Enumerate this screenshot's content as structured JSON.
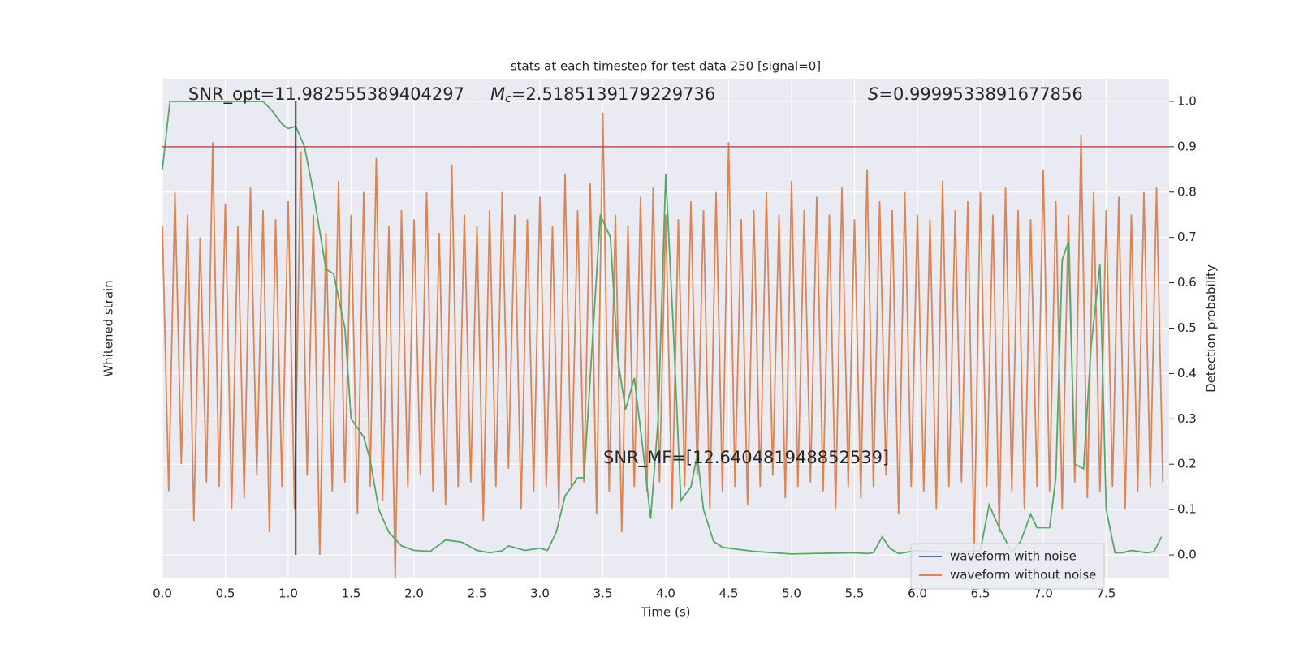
{
  "chart_data": {
    "type": "line",
    "title": "stats at each timestep for test data 250 [signal=0]",
    "xlabel": "Time (s)",
    "ylabel": "Whitened strain",
    "y2label": "Detection probability",
    "annotations": [
      "SNR_opt=11.982555389404297",
      "SNR_MF=[12.640481948852539]"
    ],
    "mc_label": {
      "symbol": "M",
      "subscript": "c",
      "value": "=2.5185139179229736"
    },
    "s_label": {
      "symbol": "S",
      "value": "=0.9999533891677856"
    },
    "xlim": [
      0,
      8
    ],
    "xticks": [
      {
        "value": 0,
        "label": "0.0"
      },
      0.5,
      {
        "value": 1,
        "label": "1.0"
      },
      1.5,
      {
        "value": 2,
        "label": "2.0"
      },
      2.5,
      {
        "value": 3,
        "label": "3.0"
      },
      3.5,
      {
        "value": 4,
        "label": "4.0"
      },
      4.5,
      {
        "value": 5,
        "label": "5.0"
      },
      5.5,
      {
        "value": 6,
        "label": "6.0"
      },
      6.5,
      {
        "value": 7,
        "label": "7.0"
      },
      7.5
    ],
    "ylim": [
      -1,
      1.2
    ],
    "y2lim": [
      -0.05,
      1.05
    ],
    "y2ticks": [
      {
        "value": 0,
        "label": "0.0"
      },
      0.1,
      0.2,
      0.3,
      0.4,
      0.5,
      0.6,
      0.7,
      0.8,
      0.9,
      {
        "value": 1,
        "label": "1.0"
      }
    ],
    "grid": true,
    "legend": "lower right",
    "hlines": [
      {
        "y": 0.9,
        "color": "#c44e52",
        "axis": "y2"
      }
    ],
    "vlines": [
      {
        "x": 1.06,
        "color": "#000000"
      }
    ],
    "series": [
      {
        "name": "waveform with noise",
        "color": "#4c72b0",
        "x": [],
        "values": []
      },
      {
        "name": "waveform without noise",
        "color": "#dd8452",
        "x": [
          0,
          0.05,
          0.1,
          0.15,
          0.2,
          0.25,
          0.3,
          0.35,
          0.4,
          0.45,
          0.5,
          0.55,
          0.6,
          0.65,
          0.7,
          0.75,
          0.8,
          0.85,
          0.9,
          0.95,
          1,
          1.05,
          1.1,
          1.15,
          1.2,
          1.25,
          1.3,
          1.35,
          1.4,
          1.45,
          1.5,
          1.55,
          1.6,
          1.65,
          1.7,
          1.75,
          1.8,
          1.85,
          1.9,
          1.95,
          2,
          2.05,
          2.1,
          2.15,
          2.2,
          2.25,
          2.3,
          2.35,
          2.4,
          2.45,
          2.5,
          2.55,
          2.6,
          2.65,
          2.7,
          2.75,
          2.8,
          2.85,
          2.9,
          2.95,
          3,
          3.05,
          3.1,
          3.15,
          3.2,
          3.25,
          3.3,
          3.35,
          3.4,
          3.45,
          3.5,
          3.55,
          3.6,
          3.65,
          3.7,
          3.75,
          3.8,
          3.85,
          3.9,
          3.95,
          4,
          4.05,
          4.1,
          4.15,
          4.2,
          4.25,
          4.3,
          4.35,
          4.4,
          4.45,
          4.5,
          4.55,
          4.6,
          4.65,
          4.7,
          4.75,
          4.8,
          4.85,
          4.9,
          4.95,
          5,
          5.05,
          5.1,
          5.15,
          5.2,
          5.25,
          5.3,
          5.35,
          5.4,
          5.45,
          5.5,
          5.55,
          5.6,
          5.65,
          5.7,
          5.75,
          5.8,
          5.85,
          5.9,
          5.95,
          6,
          6.05,
          6.1,
          6.15,
          6.2,
          6.25,
          6.3,
          6.35,
          6.4,
          6.45,
          6.5,
          6.55,
          6.6,
          6.65,
          6.7,
          6.75,
          6.8,
          6.85,
          6.9,
          6.95,
          7,
          7.05,
          7.1,
          7.15,
          7.2,
          7.25,
          7.3,
          7.35,
          7.4,
          7.45,
          7.5,
          7.55,
          7.6,
          7.65,
          7.7,
          7.75,
          7.8,
          7.85,
          7.9,
          7.95
        ],
        "values": [
          0.55,
          -0.62,
          0.7,
          -0.5,
          0.6,
          -0.75,
          0.5,
          -0.58,
          0.92,
          -0.6,
          0.65,
          -0.7,
          0.55,
          -0.65,
          0.72,
          -0.55,
          0.62,
          -0.8,
          0.58,
          -0.6,
          0.66,
          -0.7,
          0.88,
          -0.55,
          0.6,
          -0.9,
          0.52,
          -0.62,
          0.75,
          -0.58,
          0.6,
          -0.72,
          0.7,
          -0.6,
          0.85,
          -0.66,
          0.55,
          -1.0,
          0.62,
          -0.6,
          0.58,
          -0.55,
          0.7,
          -0.62,
          0.52,
          -0.68,
          0.82,
          -0.6,
          0.6,
          -0.58,
          0.55,
          -0.75,
          0.62,
          -0.6,
          0.7,
          -0.52,
          0.6,
          -0.7,
          0.58,
          -0.62,
          0.68,
          -0.6,
          0.55,
          -0.7,
          0.78,
          -0.6,
          0.62,
          -0.58,
          0.74,
          -0.72,
          1.05,
          -0.62,
          0.6,
          -0.8,
          0.55,
          -0.6,
          0.68,
          -0.62,
          0.72,
          -0.58,
          0.6,
          -0.7,
          0.58,
          -0.6,
          0.66,
          -0.55,
          0.62,
          -0.7,
          0.7,
          -0.62,
          0.92,
          -0.6,
          0.58,
          -0.68,
          0.62,
          -0.6,
          0.7,
          -0.55,
          0.6,
          -0.65,
          0.75,
          -0.6,
          0.62,
          -0.58,
          0.68,
          -0.62,
          0.6,
          -0.7,
          0.72,
          -0.6,
          0.58,
          -0.65,
          0.8,
          -0.6,
          0.66,
          -0.55,
          0.62,
          -0.72,
          0.7,
          -0.6,
          0.6,
          -0.62,
          0.58,
          -0.7,
          0.75,
          -0.6,
          0.62,
          -0.58,
          0.66,
          -0.88,
          0.7,
          -0.6,
          0.6,
          -0.8,
          0.72,
          -0.62,
          0.62,
          -0.7,
          0.58,
          -0.6,
          0.8,
          -0.62,
          0.66,
          -0.7,
          0.6,
          -0.58,
          0.95,
          -0.65,
          0.7,
          -0.62,
          0.62,
          -0.6,
          0.68,
          -0.7,
          0.6,
          -0.62,
          0.7,
          -0.6,
          0.72,
          -0.58
        ]
      },
      {
        "color": "#55a868",
        "axis": "y2",
        "x": [
          0,
          0.06,
          0.8,
          0.87,
          0.95,
          1.0,
          1.06,
          1.13,
          1.2,
          1.3,
          1.36,
          1.45,
          1.5,
          1.6,
          1.65,
          1.72,
          1.8,
          1.9,
          2.0,
          2.13,
          2.25,
          2.38,
          2.5,
          2.6,
          2.7,
          2.75,
          2.88,
          3.0,
          3.06,
          3.13,
          3.2,
          3.3,
          3.35,
          3.48,
          3.56,
          3.62,
          3.68,
          3.75,
          3.82,
          3.88,
          3.94,
          4.0,
          4.06,
          4.12,
          4.2,
          4.25,
          4.3,
          4.38,
          4.45,
          4.5,
          4.7,
          5.0,
          5.5,
          5.6,
          5.65,
          5.72,
          5.78,
          5.85,
          6.0,
          6.3,
          6.5,
          6.57,
          6.65,
          6.75,
          6.82,
          6.9,
          6.95,
          7.05,
          7.1,
          7.15,
          7.2,
          7.25,
          7.32,
          7.38,
          7.45,
          7.5,
          7.57,
          7.63,
          7.7,
          7.82,
          7.88,
          7.94
        ],
        "values": [
          0.85,
          1.0,
          1.0,
          0.98,
          0.95,
          0.94,
          0.945,
          0.9,
          0.8,
          0.63,
          0.62,
          0.5,
          0.3,
          0.26,
          0.21,
          0.1,
          0.05,
          0.02,
          0.01,
          0.008,
          0.033,
          0.028,
          0.01,
          0.005,
          0.009,
          0.02,
          0.01,
          0.015,
          0.01,
          0.05,
          0.13,
          0.17,
          0.17,
          0.75,
          0.7,
          0.43,
          0.32,
          0.39,
          0.23,
          0.08,
          0.3,
          0.84,
          0.5,
          0.12,
          0.15,
          0.22,
          0.1,
          0.03,
          0.017,
          0.015,
          0.008,
          0.002,
          0.005,
          0.003,
          0.005,
          0.04,
          0.015,
          0.003,
          0.01,
          0.005,
          0.01,
          0.11,
          0.06,
          0.005,
          0.03,
          0.09,
          0.06,
          0.06,
          0.17,
          0.65,
          0.69,
          0.2,
          0.19,
          0.46,
          0.64,
          0.1,
          0.005,
          0.005,
          0.01,
          0.005,
          0.007,
          0.04
        ]
      }
    ]
  }
}
